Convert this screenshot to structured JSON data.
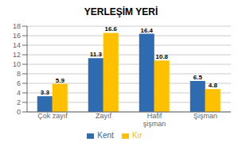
{
  "chart_data": {
    "type": "bar",
    "title": "YERLEŞİM YERİ",
    "categories": [
      "Çok zayıf",
      "Zayıf",
      "Hafif\nşişman",
      "Şişman"
    ],
    "series": [
      {
        "name": "Kent",
        "color": "#2E6BB0",
        "values": [
          3.3,
          11.3,
          16.4,
          6.5
        ]
      },
      {
        "name": "Kır",
        "color": "#FFC000",
        "values": [
          5.9,
          16.6,
          10.8,
          4.8
        ]
      }
    ],
    "ylim": [
      0,
      18
    ],
    "yticks": [
      0,
      2,
      4,
      6,
      8,
      10,
      12,
      14,
      16,
      18
    ],
    "grid": true,
    "legend": "bottom",
    "data_labels": true
  }
}
